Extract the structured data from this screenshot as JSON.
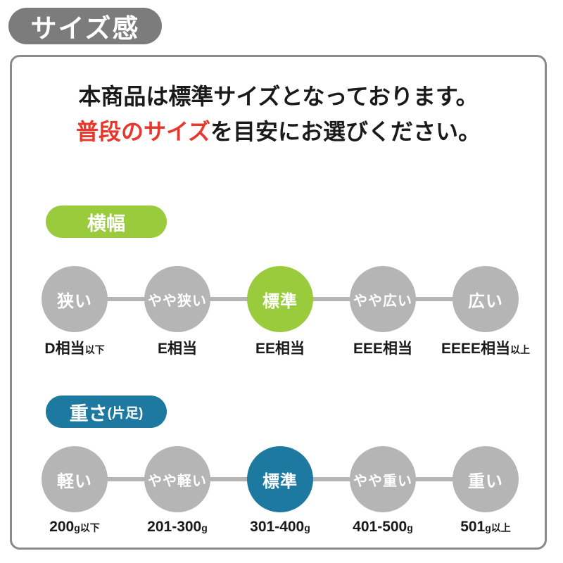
{
  "title_badge": "サイズ感",
  "intro": {
    "line1": "本商品は標準サイズとなっております。",
    "line2_highlight": "普段のサイズ",
    "line2_rest": "を目安にお選びください。"
  },
  "colors": {
    "badge_gray": "#7C7C7C",
    "card_border_gray": "#8A8A8A",
    "circle_gray": "#B5B5B5",
    "accent_green": "#9ACB3C",
    "accent_blue": "#1E79A1",
    "highlight_red": "#E8382D",
    "text_black": "#1A1A1A"
  },
  "sections": [
    {
      "id": "width",
      "badge": "横幅",
      "badge_suffix": "",
      "steps": [
        {
          "label": "狭い",
          "active": false,
          "caption_main": "D相当",
          "caption_suffix": "以下"
        },
        {
          "label": "やや狭い",
          "active": false,
          "caption_main": "E相当",
          "caption_suffix": ""
        },
        {
          "label": "標準",
          "active": true,
          "caption_main": "EE相当",
          "caption_suffix": ""
        },
        {
          "label": "やや広い",
          "active": false,
          "caption_main": "EEE相当",
          "caption_suffix": ""
        },
        {
          "label": "広い",
          "active": false,
          "caption_main": "EEEE相当",
          "caption_suffix": "以上"
        }
      ]
    },
    {
      "id": "weight",
      "badge": "重さ",
      "badge_suffix": "(片足)",
      "steps": [
        {
          "label": "軽い",
          "active": false,
          "caption_main": "200",
          "caption_suffix": "g以下"
        },
        {
          "label": "やや軽い",
          "active": false,
          "caption_main": "201-300",
          "caption_suffix": "g"
        },
        {
          "label": "標準",
          "active": true,
          "caption_main": "301-400",
          "caption_suffix": "g"
        },
        {
          "label": "やや重い",
          "active": false,
          "caption_main": "401-500",
          "caption_suffix": "g"
        },
        {
          "label": "重い",
          "active": false,
          "caption_main": "501",
          "caption_suffix": "g以上"
        }
      ]
    }
  ]
}
